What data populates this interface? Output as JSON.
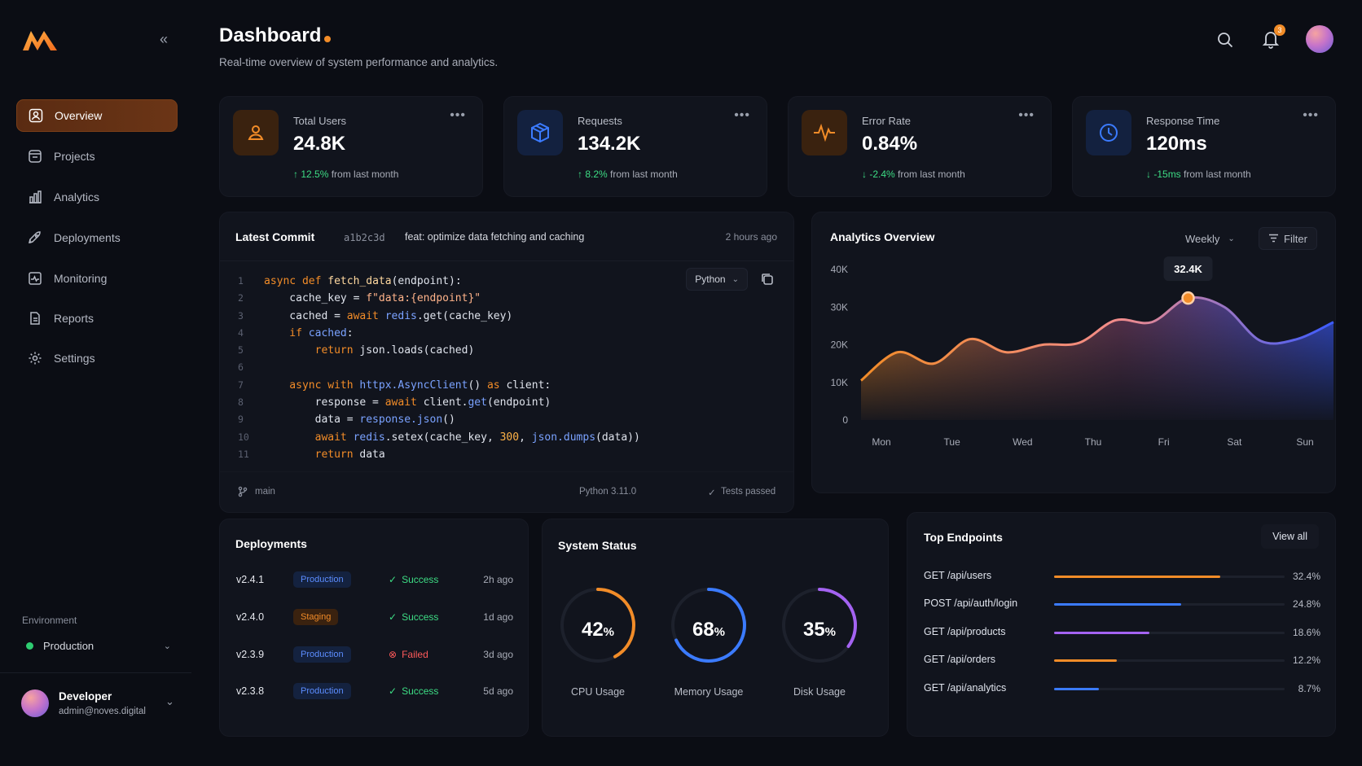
{
  "header": {
    "title": "Dashboard",
    "subtitle": "Real-time overview of system performance and analytics.",
    "notification_count": "3"
  },
  "sidebar": {
    "items": [
      {
        "label": "Overview",
        "icon": "user-icon",
        "active": true
      },
      {
        "label": "Projects",
        "icon": "folder-icon"
      },
      {
        "label": "Analytics",
        "icon": "bar-chart-icon"
      },
      {
        "label": "Deployments",
        "icon": "rocket-icon"
      },
      {
        "label": "Monitoring",
        "icon": "monitor-icon"
      },
      {
        "label": "Reports",
        "icon": "report-icon"
      },
      {
        "label": "Settings",
        "icon": "gear-icon"
      }
    ],
    "environment_label": "Environment",
    "environment_value": "Production",
    "user": {
      "name": "Developer",
      "email": "admin@noves.digital"
    }
  },
  "stats": [
    {
      "label": "Total Users",
      "value": "24.8K",
      "change": "12.5%",
      "change_suffix": "from last month",
      "direction": "up",
      "icon": "user-icon",
      "accent": "#f28c28"
    },
    {
      "label": "Requests",
      "value": "134.2K",
      "change": "8.2%",
      "change_suffix": "from last month",
      "direction": "up",
      "icon": "cube-icon",
      "accent": "#3b7bff"
    },
    {
      "label": "Error Rate",
      "value": "0.84%",
      "change": "-2.4%",
      "change_suffix": "from last month",
      "direction": "down",
      "icon": "activity-icon",
      "accent": "#f28c28"
    },
    {
      "label": "Response Time",
      "value": "120ms",
      "change": "-15ms",
      "change_suffix": "from last month",
      "direction": "down",
      "icon": "clock-icon",
      "accent": "#3b7bff"
    }
  ],
  "commit": {
    "title": "Latest Commit",
    "hash": "a1b2c3d",
    "message": "feat: optimize data fetching and caching",
    "time": "2 hours ago",
    "language": "Python",
    "branch": "main",
    "runtime": "Python 3.11.0",
    "tests": "Tests passed",
    "line_numbers": [
      "1",
      "2",
      "3",
      "4",
      "5",
      "6",
      "7",
      "8",
      "9",
      "10",
      "11"
    ]
  },
  "analytics": {
    "title": "Analytics Overview",
    "period": "Weekly",
    "filter_label": "Filter",
    "tooltip": "32.4K"
  },
  "chart_data": {
    "type": "area",
    "x": [
      "Mon",
      "Tue",
      "Wed",
      "Thu",
      "Fri",
      "Sat",
      "Sun"
    ],
    "y_ticks": [
      "40K",
      "30K",
      "20K",
      "10K",
      "0"
    ],
    "ylim": [
      0,
      40000
    ],
    "points": [
      {
        "x": "Mon",
        "y": 10500
      },
      {
        "x": "Mon+",
        "y": 18000
      },
      {
        "x": "Tue-",
        "y": 15000
      },
      {
        "x": "Tue",
        "y": 21500
      },
      {
        "x": "Wed-",
        "y": 18000
      },
      {
        "x": "Wed",
        "y": 20000
      },
      {
        "x": "Thu-",
        "y": 20500
      },
      {
        "x": "Thu",
        "y": 26500
      },
      {
        "x": "Thu+",
        "y": 26000
      },
      {
        "x": "Fri",
        "y": 32400
      },
      {
        "x": "Fri+",
        "y": 30000
      },
      {
        "x": "Sat",
        "y": 21000
      },
      {
        "x": "Sat+",
        "y": 21500
      },
      {
        "x": "Sun",
        "y": 26000
      }
    ],
    "highlight": {
      "x": "Fri",
      "y": 32400,
      "label": "32.4K"
    },
    "colors": {
      "start": "#f28c28",
      "end": "#3b5bff"
    },
    "grid": false
  },
  "deployments": {
    "title": "Deployments",
    "rows": [
      {
        "version": "v2.4.1",
        "env": "Production",
        "status": "Success",
        "time": "2h ago"
      },
      {
        "version": "v2.4.0",
        "env": "Staging",
        "status": "Success",
        "time": "1d ago"
      },
      {
        "version": "v2.3.9",
        "env": "Production",
        "status": "Failed",
        "time": "3d ago"
      },
      {
        "version": "v2.3.8",
        "env": "Production",
        "status": "Success",
        "time": "5d ago"
      }
    ]
  },
  "system_status": {
    "title": "System Status",
    "gauges": [
      {
        "label": "CPU Usage",
        "value": 42,
        "display": "42",
        "color": "#f28c28"
      },
      {
        "label": "Memory Usage",
        "value": 68,
        "display": "68",
        "color": "#3b7bff"
      },
      {
        "label": "Disk Usage",
        "value": 35,
        "display": "35",
        "color": "#a463f2"
      }
    ]
  },
  "endpoints": {
    "title": "Top Endpoints",
    "view_all": "View all",
    "rows": [
      {
        "name": "GET /api/users",
        "pct": "32.4%",
        "value": 32.4,
        "color": "#f28c28"
      },
      {
        "name": "POST /api/auth/login",
        "pct": "24.8%",
        "value": 24.8,
        "color": "#3b7bff"
      },
      {
        "name": "GET /api/products",
        "pct": "18.6%",
        "value": 18.6,
        "color": "#a463f2"
      },
      {
        "name": "GET /api/orders",
        "pct": "12.2%",
        "value": 12.2,
        "color": "#f28c28"
      },
      {
        "name": "GET /api/analytics",
        "pct": "8.7%",
        "value": 8.7,
        "color": "#3b7bff"
      }
    ]
  }
}
